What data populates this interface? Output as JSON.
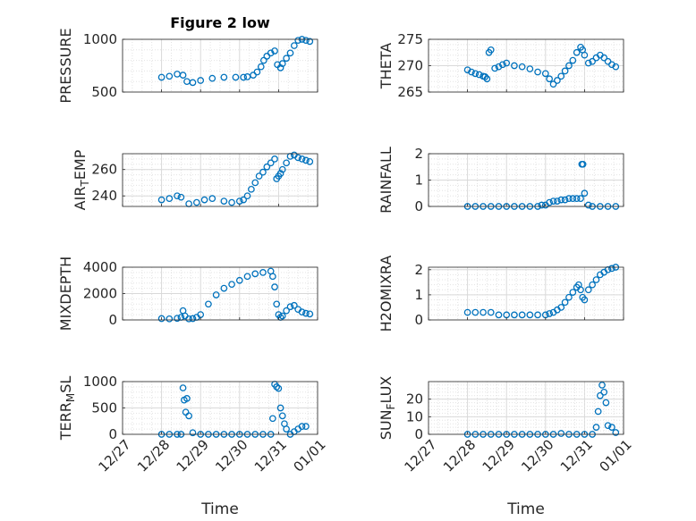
{
  "figure": {
    "title": "Figure 2 low",
    "xlabel": "Time",
    "x_tick_labels": [
      "12/27",
      "12/28",
      "12/29",
      "12/30",
      "12/31",
      "01/01"
    ],
    "marker_color": "#0072BD"
  },
  "chart_data": [
    {
      "id": "pressure",
      "type": "scatter",
      "ylabel": "PRESSURE",
      "title": "Figure 2 low",
      "xlim": [
        0,
        5
      ],
      "ylim": [
        500,
        1000
      ],
      "yticks": [
        500,
        1000
      ],
      "grid": true,
      "x_tick_labels": [],
      "series": [
        {
          "x": [
            1.0,
            1.2,
            1.4,
            1.55,
            1.65,
            1.8,
            2.0,
            2.3,
            2.6,
            2.9,
            3.1,
            3.2,
            3.35,
            3.45,
            3.55,
            3.62,
            3.7,
            3.8,
            3.9,
            3.97,
            4.05,
            4.1,
            4.2,
            4.3,
            4.4,
            4.5,
            4.6,
            4.7,
            4.8
          ],
          "y": [
            640,
            650,
            670,
            660,
            600,
            590,
            610,
            630,
            640,
            640,
            640,
            645,
            660,
            690,
            740,
            800,
            840,
            870,
            890,
            760,
            730,
            770,
            820,
            870,
            940,
            990,
            1000,
            990,
            980
          ]
        }
      ]
    },
    {
      "id": "theta",
      "type": "scatter",
      "ylabel": "THETA",
      "xlim": [
        0,
        5
      ],
      "ylim": [
        265,
        275
      ],
      "yticks": [
        265,
        270,
        275
      ],
      "grid": true,
      "x_tick_labels": [],
      "series": [
        {
          "x": [
            1.0,
            1.1,
            1.2,
            1.3,
            1.4,
            1.45,
            1.5,
            1.55,
            1.6,
            1.7,
            1.8,
            1.9,
            2.0,
            2.2,
            2.4,
            2.6,
            2.8,
            3.0,
            3.1,
            3.2,
            3.3,
            3.4,
            3.5,
            3.6,
            3.7,
            3.8,
            3.9,
            3.95,
            4.0,
            4.1,
            4.2,
            4.3,
            4.4,
            4.5,
            4.6,
            4.7,
            4.8
          ],
          "y": [
            269.2,
            268.8,
            268.5,
            268.3,
            268.0,
            267.9,
            267.5,
            272.5,
            273.0,
            269.5,
            269.8,
            270.2,
            270.5,
            270.0,
            269.8,
            269.4,
            268.8,
            268.5,
            267.5,
            266.5,
            267.2,
            268.0,
            269.0,
            270.0,
            271.0,
            272.5,
            273.5,
            273.0,
            272.0,
            270.5,
            270.8,
            271.5,
            272.0,
            271.5,
            270.8,
            270.2,
            269.8
          ]
        }
      ]
    },
    {
      "id": "air_temp",
      "type": "scatter",
      "ylabel": "AIR_TEMP",
      "xlim": [
        0,
        5
      ],
      "ylim": [
        232,
        272
      ],
      "yticks": [
        240,
        260
      ],
      "grid": true,
      "x_tick_labels": [],
      "series": [
        {
          "x": [
            1.0,
            1.2,
            1.4,
            1.5,
            1.7,
            1.9,
            2.1,
            2.3,
            2.6,
            2.8,
            3.0,
            3.1,
            3.2,
            3.3,
            3.4,
            3.5,
            3.6,
            3.7,
            3.8,
            3.9,
            3.95,
            4.0,
            4.05,
            4.1,
            4.2,
            4.3,
            4.4,
            4.5,
            4.6,
            4.7,
            4.8
          ],
          "y": [
            237,
            238,
            240,
            239,
            234,
            235,
            237,
            238,
            236,
            235,
            236,
            237,
            240,
            245,
            250,
            255,
            258,
            262,
            265,
            268,
            253,
            255,
            257,
            260,
            265,
            270,
            271,
            269,
            268,
            267,
            266
          ]
        }
      ]
    },
    {
      "id": "rainfall",
      "type": "scatter",
      "ylabel": "RAINFALL",
      "xlim": [
        0,
        5
      ],
      "ylim": [
        0,
        2
      ],
      "yticks": [
        0,
        1,
        2
      ],
      "grid": true,
      "x_tick_labels": [],
      "series": [
        {
          "x": [
            1.0,
            1.2,
            1.4,
            1.6,
            1.8,
            2.0,
            2.2,
            2.4,
            2.6,
            2.8,
            2.9,
            3.0,
            3.1,
            3.2,
            3.3,
            3.4,
            3.5,
            3.6,
            3.7,
            3.8,
            3.9,
            3.93,
            3.96,
            4.0,
            4.1,
            4.2,
            4.4,
            4.6,
            4.8
          ],
          "y": [
            0,
            0,
            0,
            0,
            0,
            0,
            0,
            0,
            0,
            0,
            0.05,
            0.05,
            0.15,
            0.2,
            0.2,
            0.25,
            0.25,
            0.3,
            0.3,
            0.3,
            0.3,
            1.6,
            1.6,
            0.5,
            0.05,
            0,
            0,
            0,
            0
          ]
        }
      ]
    },
    {
      "id": "mixdepth",
      "type": "scatter",
      "ylabel": "MIXDEPTH",
      "xlim": [
        0,
        5
      ],
      "ylim": [
        0,
        4000
      ],
      "yticks": [
        0,
        2000,
        4000
      ],
      "grid": true,
      "x_tick_labels": [],
      "series": [
        {
          "x": [
            1.0,
            1.2,
            1.4,
            1.5,
            1.55,
            1.6,
            1.7,
            1.8,
            1.9,
            2.0,
            2.2,
            2.4,
            2.6,
            2.8,
            3.0,
            3.2,
            3.4,
            3.6,
            3.8,
            3.85,
            3.9,
            3.95,
            4.0,
            4.05,
            4.1,
            4.2,
            4.3,
            4.4,
            4.5,
            4.6,
            4.7,
            4.8
          ],
          "y": [
            100,
            80,
            120,
            200,
            700,
            300,
            80,
            100,
            200,
            400,
            1200,
            1900,
            2400,
            2700,
            3000,
            3300,
            3500,
            3600,
            3700,
            3300,
            2500,
            1200,
            400,
            200,
            300,
            700,
            1000,
            1100,
            800,
            600,
            500,
            450
          ]
        }
      ]
    },
    {
      "id": "h2omixra",
      "type": "scatter",
      "ylabel": "H2OMIXRA",
      "xlim": [
        0,
        5
      ],
      "ylim": [
        0,
        2.1
      ],
      "yticks": [
        0,
        1,
        2
      ],
      "grid": true,
      "x_tick_labels": [],
      "series": [
        {
          "x": [
            1.0,
            1.2,
            1.4,
            1.6,
            1.8,
            2.0,
            2.2,
            2.4,
            2.6,
            2.8,
            3.0,
            3.1,
            3.2,
            3.3,
            3.4,
            3.5,
            3.6,
            3.7,
            3.8,
            3.85,
            3.9,
            3.95,
            4.0,
            4.1,
            4.2,
            4.3,
            4.4,
            4.5,
            4.6,
            4.7,
            4.8
          ],
          "y": [
            0.3,
            0.3,
            0.3,
            0.3,
            0.2,
            0.2,
            0.2,
            0.2,
            0.2,
            0.2,
            0.2,
            0.25,
            0.3,
            0.4,
            0.5,
            0.7,
            0.9,
            1.1,
            1.3,
            1.4,
            1.2,
            0.9,
            0.8,
            1.2,
            1.4,
            1.6,
            1.8,
            1.9,
            2.0,
            2.05,
            2.1
          ]
        }
      ]
    },
    {
      "id": "terr_msl",
      "type": "scatter",
      "ylabel": "TERR_MSL",
      "xlim": [
        0,
        5
      ],
      "ylim": [
        0,
        1000
      ],
      "yticks": [
        0,
        500,
        1000
      ],
      "grid": true,
      "x_tick_labels": [
        "12/27",
        "12/28",
        "12/29",
        "12/30",
        "12/31",
        "01/01"
      ],
      "xlabel": "Time",
      "series": [
        {
          "x": [
            1.0,
            1.2,
            1.4,
            1.5,
            1.55,
            1.58,
            1.62,
            1.65,
            1.7,
            1.8,
            2.0,
            2.2,
            2.4,
            2.6,
            2.8,
            3.0,
            3.2,
            3.4,
            3.6,
            3.8,
            3.85,
            3.9,
            3.95,
            4.0,
            4.05,
            4.1,
            4.15,
            4.2,
            4.3,
            4.4,
            4.5,
            4.6,
            4.7
          ],
          "y": [
            0,
            0,
            0,
            0,
            880,
            650,
            420,
            680,
            350,
            30,
            0,
            0,
            0,
            0,
            0,
            0,
            0,
            0,
            0,
            0,
            300,
            950,
            900,
            870,
            500,
            350,
            200,
            100,
            0,
            50,
            100,
            150,
            150
          ]
        }
      ]
    },
    {
      "id": "sun_flux",
      "type": "scatter",
      "ylabel": "SUN_FLUX",
      "xlim": [
        0,
        5
      ],
      "ylim": [
        0,
        30
      ],
      "yticks": [
        0,
        10,
        20
      ],
      "grid": true,
      "x_tick_labels": [
        "12/27",
        "12/28",
        "12/29",
        "12/30",
        "12/31",
        "01/01"
      ],
      "xlabel": "Time",
      "series": [
        {
          "x": [
            1.0,
            1.2,
            1.4,
            1.6,
            1.8,
            2.0,
            2.2,
            2.4,
            2.6,
            2.8,
            3.0,
            3.2,
            3.4,
            3.6,
            3.8,
            4.0,
            4.2,
            4.3,
            4.35,
            4.4,
            4.45,
            4.5,
            4.55,
            4.6,
            4.7,
            4.8
          ],
          "y": [
            0,
            0,
            0,
            0,
            0,
            0,
            0,
            0,
            0,
            0,
            0,
            0,
            0.5,
            0,
            0,
            0,
            0,
            4,
            13,
            22,
            28,
            24,
            18,
            5,
            4,
            1
          ]
        }
      ]
    }
  ]
}
